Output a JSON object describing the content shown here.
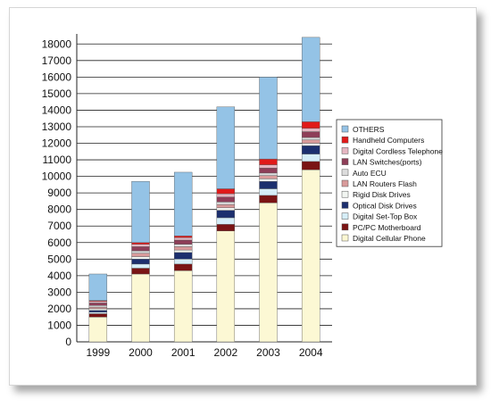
{
  "chart_data": {
    "type": "bar",
    "stacked": true,
    "categories": [
      "1999",
      "2000",
      "2001",
      "2002",
      "2003",
      "2004"
    ],
    "ylim": [
      0,
      18500
    ],
    "yticks": [
      0,
      1000,
      2000,
      3000,
      4000,
      5000,
      6000,
      7000,
      8000,
      9000,
      10000,
      11000,
      12000,
      13000,
      14000,
      15000,
      16000,
      17000,
      18000
    ],
    "grid": "horizontal",
    "legend_position": "right",
    "series": [
      {
        "name": "Digital Cellular Phone",
        "color": "#fcf8d4",
        "values": [
          1500,
          4100,
          4300,
          6700,
          8400,
          10400
        ]
      },
      {
        "name": "PC/PC Motherboard",
        "color": "#7a1414",
        "values": [
          200,
          350,
          400,
          400,
          450,
          500
        ]
      },
      {
        "name": "Digital Set-Top Box",
        "color": "#d6eef8",
        "values": [
          100,
          250,
          300,
          400,
          400,
          450
        ]
      },
      {
        "name": "Optical Disk Drives",
        "color": "#1c2f6e",
        "values": [
          100,
          300,
          400,
          450,
          450,
          500
        ]
      },
      {
        "name": "Rigid Disk Drives",
        "color": "#f2f6f2",
        "values": [
          100,
          150,
          150,
          150,
          150,
          150
        ]
      },
      {
        "name": "LAN Routers Flash",
        "color": "#d99b9b",
        "values": [
          100,
          200,
          200,
          200,
          200,
          200
        ]
      },
      {
        "name": "Auto ECU",
        "color": "#dcdcdc",
        "values": [
          100,
          150,
          150,
          150,
          150,
          150
        ]
      },
      {
        "name": "LAN Switches(ports)",
        "color": "#8e3e58",
        "values": [
          150,
          250,
          250,
          300,
          300,
          350
        ]
      },
      {
        "name": "Digital Cordless Telephone",
        "color": "#e5b6c2",
        "values": [
          100,
          150,
          150,
          200,
          200,
          200
        ]
      },
      {
        "name": "Handheld Computers",
        "color": "#e01a1a",
        "values": [
          50,
          100,
          100,
          300,
          350,
          400
        ]
      },
      {
        "name": "OTHERS",
        "color": "#94c3e6",
        "values": [
          1600,
          3700,
          3850,
          4950,
          4950,
          5100
        ]
      }
    ],
    "legend_order": [
      "OTHERS",
      "Handheld Computers",
      "Digital Cordless Telephone",
      "LAN Switches(ports)",
      "Auto ECU",
      "LAN Routers Flash",
      "Rigid Disk Drives",
      "Optical Disk Drives",
      "Digital Set-Top Box",
      "PC/PC Motherboard",
      "Digital Cellular Phone"
    ]
  }
}
